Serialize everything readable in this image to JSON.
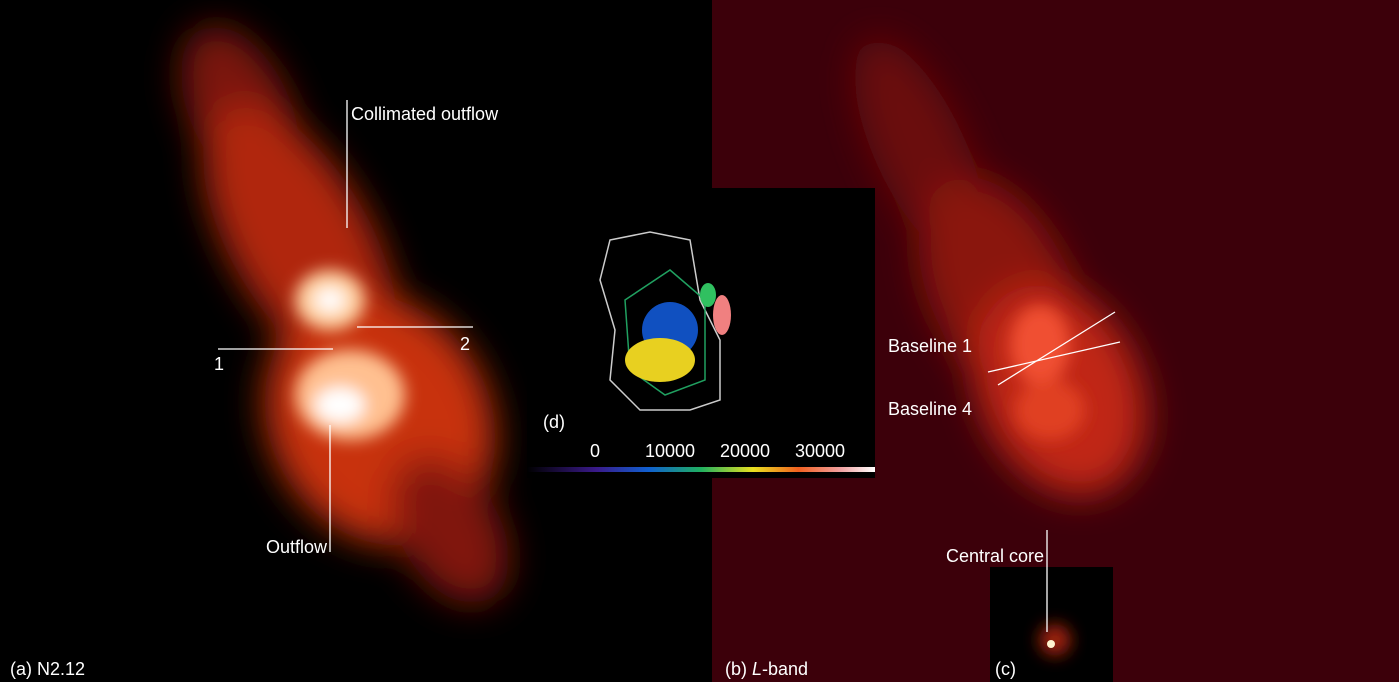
{
  "panels": {
    "a": {
      "label": "(a) N2.12"
    },
    "b": {
      "tag": "(b)",
      "band_letter": "L",
      "band_suffix": "-band"
    },
    "c": {
      "label": "(c)"
    },
    "d": {
      "label": "(d)"
    }
  },
  "annotations": {
    "collimated_outflow": "Collimated outflow",
    "outflow": "Outflow",
    "cut_1": "1",
    "cut_2": "2",
    "baseline_1": "Baseline 1",
    "baseline_4": "Baseline 4",
    "central_core": "Central core"
  },
  "colorbar": {
    "ticks": [
      0,
      10000,
      20000,
      30000
    ]
  }
}
